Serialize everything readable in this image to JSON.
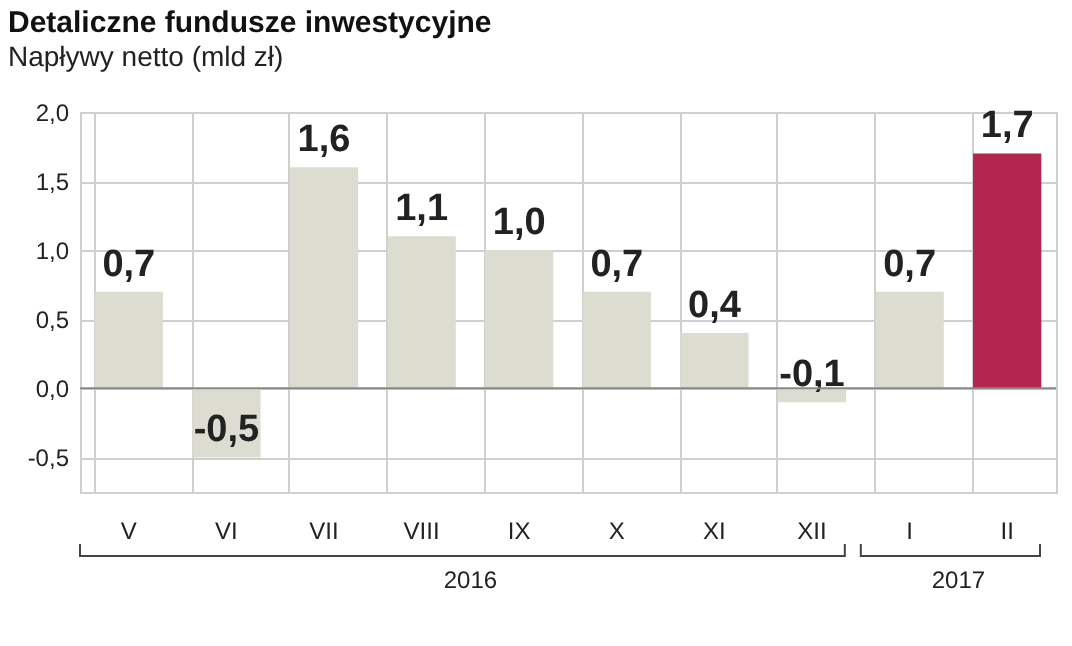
{
  "chart_data": {
    "type": "bar",
    "title": "Detaliczne fundusze inwestycyjne",
    "subtitle": "Napływy netto (mld zł)",
    "categories": [
      "V",
      "VI",
      "VII",
      "VIII",
      "IX",
      "X",
      "XI",
      "XII",
      "I",
      "II"
    ],
    "values": [
      0.7,
      -0.5,
      1.6,
      1.1,
      1.0,
      0.7,
      0.4,
      -0.1,
      0.7,
      1.7
    ],
    "colors": [
      "#dcdcd0",
      "#dcdcd0",
      "#dcdcd0",
      "#dcdcd0",
      "#dcdcd0",
      "#dcdcd0",
      "#dcdcd0",
      "#dcdcd0",
      "#dcdcd0",
      "#b3264d"
    ],
    "value_labels": [
      "0,7",
      "-0,5",
      "1,6",
      "1,1",
      "1,0",
      "0,7",
      "0,4",
      "-0,1",
      "0,7",
      "1,7"
    ],
    "ylim": [
      -0.75,
      2.0
    ],
    "yticks": [
      {
        "value": -0.5,
        "label": "-0,5"
      },
      {
        "value": 0,
        "label": "0,0"
      },
      {
        "value": 0.5,
        "label": "0,5"
      },
      {
        "value": 1,
        "label": "1,0"
      },
      {
        "value": 1.5,
        "label": "1,5"
      },
      {
        "value": 2,
        "label": "2,0"
      }
    ],
    "grid": true,
    "annotations": [
      "2016",
      "2017"
    ]
  }
}
